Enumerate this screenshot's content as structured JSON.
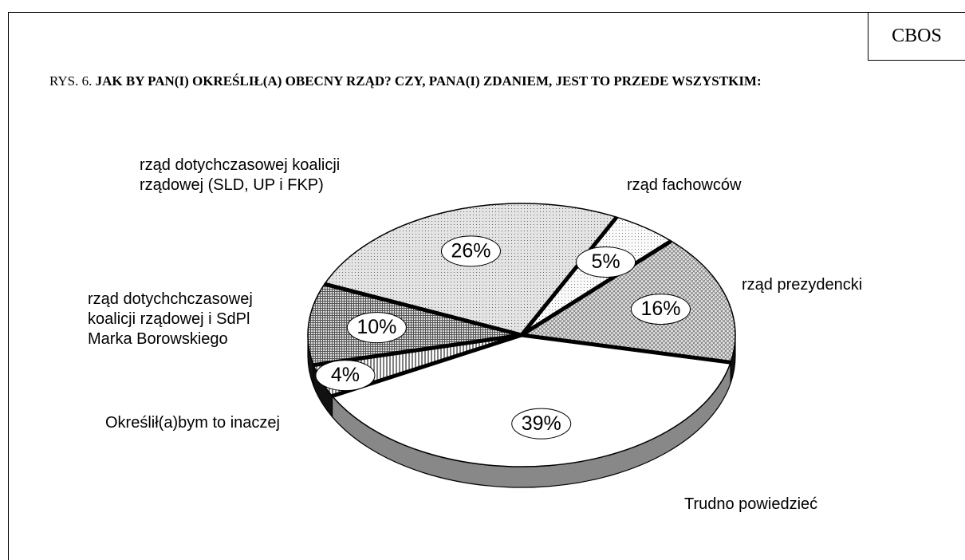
{
  "header": {
    "source": "CBOS",
    "figure_label": "RYS. 6.",
    "title": "JAK BY PAN(I) OKREŚLIŁ(A) OBECNY RZĄD? CZY, PANA(I) ZDANIEM, JEST TO PRZEDE WSZYSTKIM:"
  },
  "chart_data": {
    "type": "pie",
    "categories": [
      "Trudno powiedzieć",
      "Określił(a)bym to inaczej",
      "rząd dotychchczasowej koalicji rządowej i SdPl Marka Borowskiego",
      "rząd dotychczasowej koalicji rządowej (SLD, UP i FKP)",
      "rząd fachowców",
      "rząd prezydencki"
    ],
    "values": [
      39,
      4,
      10,
      26,
      5,
      16
    ],
    "value_labels": [
      "39%",
      "4%",
      "10%",
      "26%",
      "5%",
      "16%"
    ]
  }
}
